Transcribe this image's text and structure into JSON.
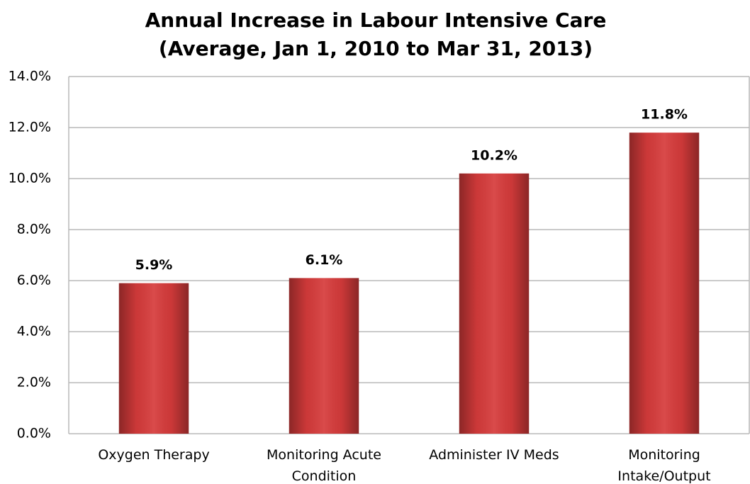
{
  "chart_data": {
    "type": "bar",
    "title": "Annual Increase in Labour Intensive Care",
    "subtitle": "(Average, Jan 1, 2010 to Mar 31, 2013)",
    "categories": [
      "Oxygen Therapy",
      "Monitoring Acute Condition",
      "Administer IV Meds",
      "Monitoring Intake/Output"
    ],
    "values": [
      5.9,
      6.1,
      10.2,
      11.8
    ],
    "value_labels": [
      "5.9%",
      "6.1%",
      "10.2%",
      "11.8%"
    ],
    "color": "#d63b3b",
    "ylim": [
      0,
      14
    ],
    "yticks": [
      {
        "value": 0,
        "label": "0.0%"
      },
      {
        "value": 2,
        "label": "2.0%"
      },
      {
        "value": 4,
        "label": "4.0%"
      },
      {
        "value": 6,
        "label": "6.0%"
      },
      {
        "value": 8,
        "label": "8.0%"
      },
      {
        "value": 10,
        "label": "10.0%"
      },
      {
        "value": 12,
        "label": "12.0%"
      },
      {
        "value": 14,
        "label": "14.0%"
      }
    ],
    "grid": true
  }
}
